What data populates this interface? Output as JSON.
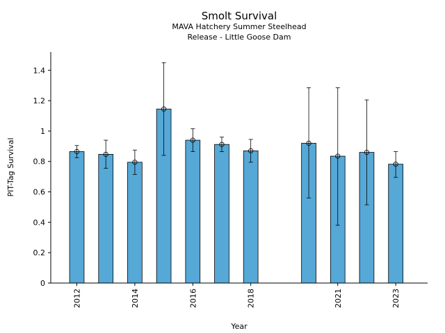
{
  "chart_data": {
    "type": "bar",
    "title": "Smolt Survival",
    "subtitle_line1": "MAVA Hatchery Summer Steelhead",
    "subtitle_line2": "Release - Little Goose Dam",
    "xlabel": "Year",
    "ylabel": "PIT-Tag Survival",
    "xlim": [
      2011.1,
      2024.1
    ],
    "ylim": [
      0,
      1.52
    ],
    "yticks": [
      {
        "value": 0,
        "label": "0"
      },
      {
        "value": 0.2,
        "label": "0.2"
      },
      {
        "value": 0.4,
        "label": "0.4"
      },
      {
        "value": 0.6,
        "label": "0.6"
      },
      {
        "value": 0.8,
        "label": "0.8"
      },
      {
        "value": 1.0,
        "label": "1"
      },
      {
        "value": 1.2,
        "label": "1.2"
      },
      {
        "value": 1.4,
        "label": "1.4"
      }
    ],
    "xticks": [
      {
        "value": 2012,
        "label": "2012"
      },
      {
        "value": 2014,
        "label": "2014"
      },
      {
        "value": 2016,
        "label": "2016"
      },
      {
        "value": 2018,
        "label": "2018"
      },
      {
        "value": 2021,
        "label": "2021"
      },
      {
        "value": 2023,
        "label": "2023"
      }
    ],
    "points": [
      {
        "x": 2012,
        "y": 0.865,
        "lower": 0.825,
        "upper": 0.905
      },
      {
        "x": 2013,
        "y": 0.847,
        "lower": 0.755,
        "upper": 0.94
      },
      {
        "x": 2014,
        "y": 0.795,
        "lower": 0.715,
        "upper": 0.875
      },
      {
        "x": 2015,
        "y": 1.145,
        "lower": 0.84,
        "upper": 1.45
      },
      {
        "x": 2016,
        "y": 0.94,
        "lower": 0.865,
        "upper": 1.015
      },
      {
        "x": 2017,
        "y": 0.912,
        "lower": 0.865,
        "upper": 0.96
      },
      {
        "x": 2018,
        "y": 0.87,
        "lower": 0.795,
        "upper": 0.945
      },
      {
        "x": 2020,
        "y": 0.92,
        "lower": 0.56,
        "upper": 1.285
      },
      {
        "x": 2021,
        "y": 0.835,
        "lower": 0.38,
        "upper": 1.285
      },
      {
        "x": 2022,
        "y": 0.86,
        "lower": 0.515,
        "upper": 1.205
      },
      {
        "x": 2023,
        "y": 0.782,
        "lower": 0.695,
        "upper": 0.865
      }
    ],
    "bar_color": "#56a8d6",
    "grid": false,
    "legend": "none"
  }
}
